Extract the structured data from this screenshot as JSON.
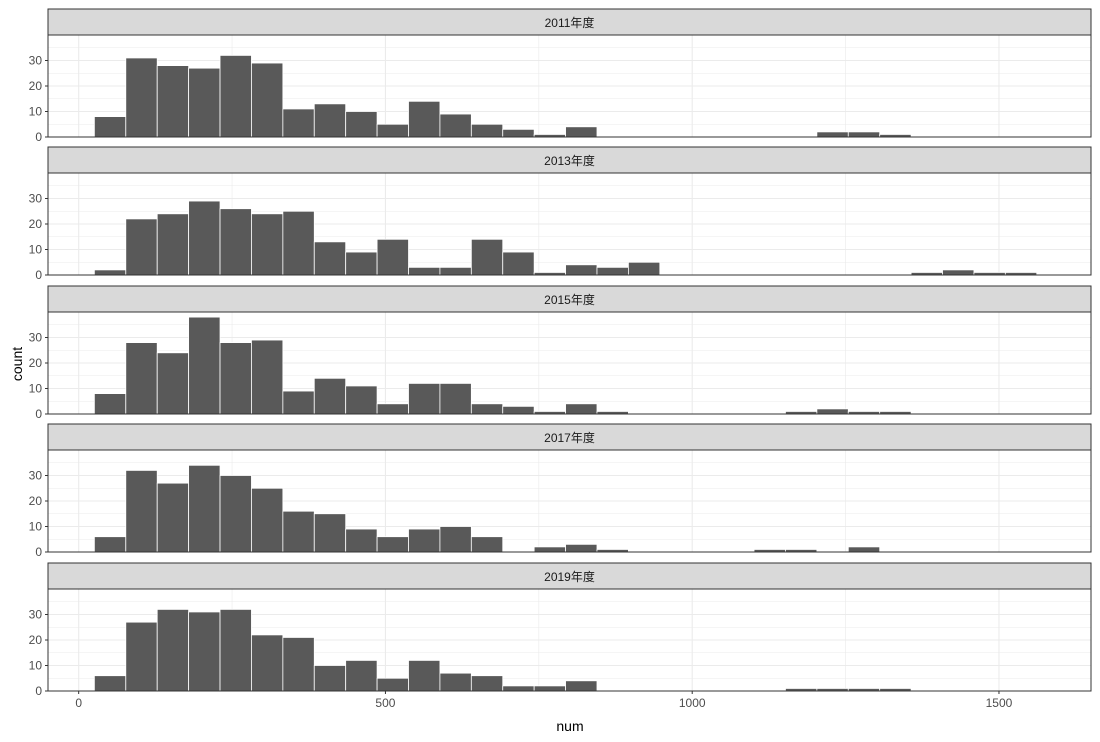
{
  "chart_data": {
    "type": "bar",
    "subtype": "faceted-histogram",
    "xlabel": "num",
    "ylabel": "count",
    "x_ticks": [
      0,
      500,
      1000,
      1500
    ],
    "x_tick_labels": [
      "0",
      "500",
      "1000",
      "1500"
    ],
    "y_ticks": [
      0,
      10,
      20,
      30
    ],
    "y_tick_labels": [
      "0",
      "10",
      "20",
      "30"
    ],
    "xlim": [
      -50,
      1650
    ],
    "ylim": [
      0,
      40
    ],
    "bin_width": 51.2,
    "grid": true,
    "legend": "none",
    "colors": {
      "bar_fill": "#595959",
      "bar_stroke": "#ffffff",
      "strip_fill": "#d9d9d9",
      "grid": "#ebebeb",
      "panel_border": "#333333",
      "text": "#000000",
      "tick_text": "#4d4d4d"
    },
    "facets": [
      {
        "label": "2011年度",
        "bins": [
          {
            "x": 0,
            "count": 0
          },
          {
            "x": 51.2,
            "count": 8
          },
          {
            "x": 102.4,
            "count": 31
          },
          {
            "x": 153.6,
            "count": 28
          },
          {
            "x": 204.8,
            "count": 27
          },
          {
            "x": 256,
            "count": 32
          },
          {
            "x": 307.2,
            "count": 29
          },
          {
            "x": 358.4,
            "count": 11
          },
          {
            "x": 409.6,
            "count": 13
          },
          {
            "x": 460.8,
            "count": 10
          },
          {
            "x": 512,
            "count": 5
          },
          {
            "x": 563.2,
            "count": 14
          },
          {
            "x": 614.4,
            "count": 9
          },
          {
            "x": 665.6,
            "count": 5
          },
          {
            "x": 716.8,
            "count": 3
          },
          {
            "x": 768,
            "count": 1
          },
          {
            "x": 819.2,
            "count": 4
          },
          {
            "x": 1228.8,
            "count": 2
          },
          {
            "x": 1280,
            "count": 2
          },
          {
            "x": 1331.2,
            "count": 1
          },
          {
            "x": 1587.2,
            "count": 0
          }
        ]
      },
      {
        "label": "2013年度",
        "bins": [
          {
            "x": 0,
            "count": 0
          },
          {
            "x": 51.2,
            "count": 2
          },
          {
            "x": 102.4,
            "count": 22
          },
          {
            "x": 153.6,
            "count": 24
          },
          {
            "x": 204.8,
            "count": 29
          },
          {
            "x": 256,
            "count": 26
          },
          {
            "x": 307.2,
            "count": 24
          },
          {
            "x": 358.4,
            "count": 25
          },
          {
            "x": 409.6,
            "count": 13
          },
          {
            "x": 460.8,
            "count": 9
          },
          {
            "x": 512,
            "count": 14
          },
          {
            "x": 563.2,
            "count": 3
          },
          {
            "x": 614.4,
            "count": 3
          },
          {
            "x": 665.6,
            "count": 14
          },
          {
            "x": 716.8,
            "count": 9
          },
          {
            "x": 768,
            "count": 1
          },
          {
            "x": 819.2,
            "count": 4
          },
          {
            "x": 870.4,
            "count": 3
          },
          {
            "x": 921.6,
            "count": 5
          },
          {
            "x": 1382.4,
            "count": 1
          },
          {
            "x": 1433.6,
            "count": 2
          },
          {
            "x": 1484.8,
            "count": 1
          },
          {
            "x": 1536,
            "count": 1
          }
        ]
      },
      {
        "label": "2015年度",
        "bins": [
          {
            "x": 0,
            "count": 0
          },
          {
            "x": 51.2,
            "count": 8
          },
          {
            "x": 102.4,
            "count": 28
          },
          {
            "x": 153.6,
            "count": 24
          },
          {
            "x": 204.8,
            "count": 38
          },
          {
            "x": 256,
            "count": 28
          },
          {
            "x": 307.2,
            "count": 29
          },
          {
            "x": 358.4,
            "count": 9
          },
          {
            "x": 409.6,
            "count": 14
          },
          {
            "x": 460.8,
            "count": 11
          },
          {
            "x": 512,
            "count": 4
          },
          {
            "x": 563.2,
            "count": 12
          },
          {
            "x": 614.4,
            "count": 12
          },
          {
            "x": 665.6,
            "count": 4
          },
          {
            "x": 716.8,
            "count": 3
          },
          {
            "x": 768,
            "count": 1
          },
          {
            "x": 819.2,
            "count": 4
          },
          {
            "x": 870.4,
            "count": 1
          },
          {
            "x": 1177.6,
            "count": 1
          },
          {
            "x": 1228.8,
            "count": 2
          },
          {
            "x": 1280,
            "count": 1
          },
          {
            "x": 1331.2,
            "count": 1
          },
          {
            "x": 1587.2,
            "count": 0
          }
        ]
      },
      {
        "label": "2017年度",
        "bins": [
          {
            "x": 0,
            "count": 0
          },
          {
            "x": 51.2,
            "count": 6
          },
          {
            "x": 102.4,
            "count": 32
          },
          {
            "x": 153.6,
            "count": 27
          },
          {
            "x": 204.8,
            "count": 34
          },
          {
            "x": 256,
            "count": 30
          },
          {
            "x": 307.2,
            "count": 25
          },
          {
            "x": 358.4,
            "count": 16
          },
          {
            "x": 409.6,
            "count": 15
          },
          {
            "x": 460.8,
            "count": 9
          },
          {
            "x": 512,
            "count": 6
          },
          {
            "x": 563.2,
            "count": 9
          },
          {
            "x": 614.4,
            "count": 10
          },
          {
            "x": 665.6,
            "count": 6
          },
          {
            "x": 768,
            "count": 2
          },
          {
            "x": 819.2,
            "count": 3
          },
          {
            "x": 870.4,
            "count": 1
          },
          {
            "x": 1126.4,
            "count": 1
          },
          {
            "x": 1177.6,
            "count": 1
          },
          {
            "x": 1280,
            "count": 2
          },
          {
            "x": 1587.2,
            "count": 0
          }
        ]
      },
      {
        "label": "2019年度",
        "bins": [
          {
            "x": 51.2,
            "count": 6
          },
          {
            "x": 102.4,
            "count": 27
          },
          {
            "x": 153.6,
            "count": 32
          },
          {
            "x": 204.8,
            "count": 31
          },
          {
            "x": 256,
            "count": 32
          },
          {
            "x": 307.2,
            "count": 22
          },
          {
            "x": 358.4,
            "count": 21
          },
          {
            "x": 409.6,
            "count": 10
          },
          {
            "x": 460.8,
            "count": 12
          },
          {
            "x": 512,
            "count": 5
          },
          {
            "x": 563.2,
            "count": 12
          },
          {
            "x": 614.4,
            "count": 7
          },
          {
            "x": 665.6,
            "count": 6
          },
          {
            "x": 716.8,
            "count": 2
          },
          {
            "x": 768,
            "count": 2
          },
          {
            "x": 819.2,
            "count": 4
          },
          {
            "x": 1177.6,
            "count": 1
          },
          {
            "x": 1228.8,
            "count": 1
          },
          {
            "x": 1280,
            "count": 1
          },
          {
            "x": 1331.2,
            "count": 1
          },
          {
            "x": 1587.2,
            "count": 0
          }
        ]
      }
    ]
  }
}
